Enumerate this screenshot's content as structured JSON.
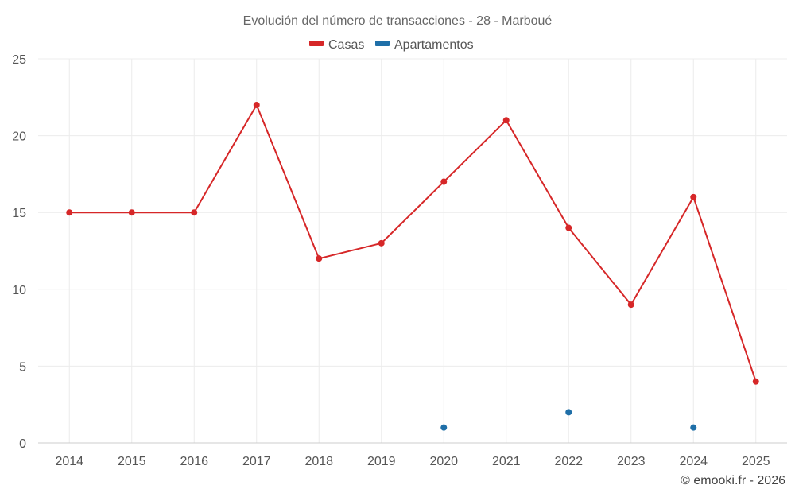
{
  "chart_data": {
    "type": "line",
    "title": "Evolución del número de transacciones - 28 - Marboué",
    "categories": [
      "2014",
      "2015",
      "2016",
      "2017",
      "2018",
      "2019",
      "2020",
      "2021",
      "2022",
      "2023",
      "2024",
      "2025"
    ],
    "ylim": [
      0,
      25
    ],
    "yticks": [
      0,
      5,
      10,
      15,
      20,
      25
    ],
    "grid": true,
    "legend_position": "top-center",
    "series": [
      {
        "name": "Casas",
        "color": "#d62728",
        "line": true,
        "values": [
          15,
          15,
          15,
          22,
          12,
          13,
          17,
          21,
          14,
          9,
          16,
          4
        ]
      },
      {
        "name": "Apartamentos",
        "color": "#1f6fa8",
        "line": false,
        "values": [
          null,
          null,
          null,
          null,
          null,
          null,
          1,
          null,
          2,
          null,
          1,
          null
        ]
      }
    ]
  },
  "credit": "© emooki.fr - 2026"
}
